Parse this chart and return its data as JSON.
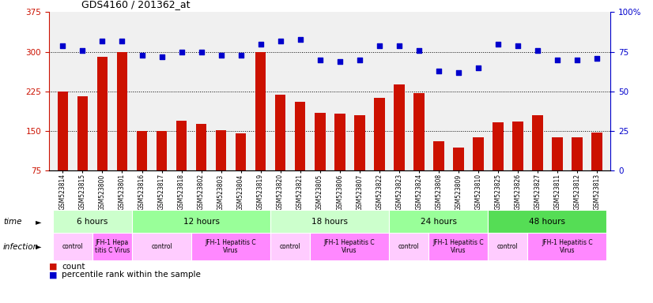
{
  "title": "GDS4160 / 201362_at",
  "samples": [
    "GSM523814",
    "GSM523815",
    "GSM523800",
    "GSM523801",
    "GSM523816",
    "GSM523817",
    "GSM523818",
    "GSM523802",
    "GSM523803",
    "GSM523804",
    "GSM523819",
    "GSM523820",
    "GSM523821",
    "GSM523805",
    "GSM523806",
    "GSM523807",
    "GSM523822",
    "GSM523823",
    "GSM523824",
    "GSM523808",
    "GSM523809",
    "GSM523810",
    "GSM523825",
    "GSM523826",
    "GSM523827",
    "GSM523811",
    "GSM523812",
    "GSM523813"
  ],
  "counts": [
    225,
    215,
    290,
    300,
    150,
    150,
    170,
    163,
    152,
    145,
    300,
    218,
    205,
    185,
    183,
    180,
    213,
    238,
    222,
    130,
    118,
    138,
    167,
    168,
    180,
    138,
    138,
    147
  ],
  "percentile": [
    79,
    76,
    82,
    82,
    73,
    72,
    75,
    75,
    73,
    73,
    80,
    82,
    83,
    70,
    69,
    70,
    79,
    79,
    76,
    63,
    62,
    65,
    80,
    79,
    76,
    70,
    70,
    71
  ],
  "ylim_left": [
    75,
    375
  ],
  "ylim_right": [
    0,
    100
  ],
  "yticks_left": [
    75,
    150,
    225,
    300,
    375
  ],
  "yticks_right": [
    0,
    25,
    50,
    75,
    100
  ],
  "bar_color": "#cc1100",
  "dot_color": "#0000cc",
  "time_groups": [
    {
      "label": "6 hours",
      "start": 0,
      "end": 4,
      "color": "#ccffcc"
    },
    {
      "label": "12 hours",
      "start": 4,
      "end": 11,
      "color": "#99ff99"
    },
    {
      "label": "18 hours",
      "start": 11,
      "end": 17,
      "color": "#ccffcc"
    },
    {
      "label": "24 hours",
      "start": 17,
      "end": 22,
      "color": "#99ff99"
    },
    {
      "label": "48 hours",
      "start": 22,
      "end": 28,
      "color": "#55dd55"
    }
  ],
  "infection_groups": [
    {
      "label": "control",
      "start": 0,
      "end": 2,
      "color": "#ffccff"
    },
    {
      "label": "JFH-1 Hepa\ntitis C Virus",
      "start": 2,
      "end": 4,
      "color": "#ff88ff"
    },
    {
      "label": "control",
      "start": 4,
      "end": 7,
      "color": "#ffccff"
    },
    {
      "label": "JFH-1 Hepatitis C\nVirus",
      "start": 7,
      "end": 11,
      "color": "#ff88ff"
    },
    {
      "label": "control",
      "start": 11,
      "end": 13,
      "color": "#ffccff"
    },
    {
      "label": "JFH-1 Hepatitis C\nVirus",
      "start": 13,
      "end": 17,
      "color": "#ff88ff"
    },
    {
      "label": "control",
      "start": 17,
      "end": 19,
      "color": "#ffccff"
    },
    {
      "label": "JFH-1 Hepatitis C\nVirus",
      "start": 19,
      "end": 22,
      "color": "#ff88ff"
    },
    {
      "label": "control",
      "start": 22,
      "end": 24,
      "color": "#ffccff"
    },
    {
      "label": "JFH-1 Hepatitis C\nVirus",
      "start": 24,
      "end": 28,
      "color": "#ff88ff"
    }
  ],
  "left_axis_color": "#cc1100",
  "right_axis_color": "#0000cc"
}
